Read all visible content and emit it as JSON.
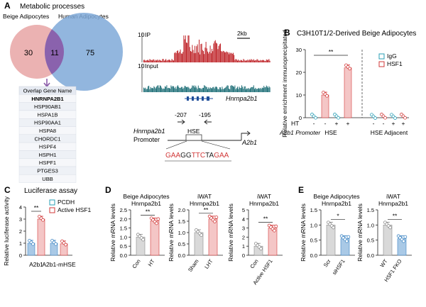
{
  "panel_A": {
    "letter": "A",
    "title": "Metabolic processes",
    "venn": {
      "left_label": "Beige Adipocytes",
      "right_label": "Human Adipocytes",
      "left_only": "30",
      "overlap": "11",
      "right_only": "75",
      "left_color": "#e8a4a4",
      "right_color": "#7fa9d8",
      "overlap_color": "#8a5aa8"
    },
    "gene_table": {
      "header": "Overlap Gene Name",
      "genes": [
        "HNRNPA2B1",
        "HSP90AB1",
        "HSPA1B",
        "HSP90AA1",
        "HSPA8",
        "CHORDC1",
        "HSPF4",
        "HSPH1",
        "HSPF1",
        "PTGES3",
        "UBB"
      ]
    },
    "tracks": {
      "ip_label": "IP",
      "input_label": "Input",
      "ip_scale": "10",
      "input_scale": "10",
      "scalebar": "2kb",
      "gene_label": "Hnrnpa2b1",
      "ip_color": "#c0282d",
      "input_color": "#1f6f78"
    },
    "promoter": {
      "gene": "Hnrnpa2b1",
      "promoter_label": "Promoter",
      "pos1": "-207",
      "pos2": "-195",
      "element": "HSE",
      "gene_box": "A2b1",
      "seq": [
        {
          "t": "GAA",
          "c": "#d23a3a"
        },
        {
          "t": "GG",
          "c": "#222222"
        },
        {
          "t": "TTC",
          "c": "#d23a3a"
        },
        {
          "t": "TA",
          "c": "#222222"
        },
        {
          "t": "GAA",
          "c": "#d23a3a"
        }
      ]
    }
  },
  "panel_B": {
    "letter": "B",
    "title": "C3H10T1/2-Derived Beige Adipocytes",
    "ylabel": "Relative enrichment immunoprecipitated",
    "ht_label": "HT",
    "ht_signs": [
      "-",
      "-",
      "+",
      "+",
      "-",
      "-",
      "+",
      "+"
    ],
    "promoter_label": "A2b1 Promoter",
    "group_labels": [
      "HSE",
      "HSE Adjacent"
    ],
    "legend": [
      "IgG",
      "HSF1"
    ],
    "sig": "**"
  },
  "panel_C": {
    "letter": "C",
    "title": "Luciferase assay",
    "ylabel": "Relative luciferase activity",
    "legend": [
      "PCDH",
      "Active HSF1"
    ],
    "group_labels": [
      "A2b1",
      "A2b1-mHSE"
    ],
    "sig": "**"
  },
  "panel_D": {
    "letter": "D",
    "subplots": [
      {
        "title1": "Beige Adipocytes",
        "title2": "Hnrnpa2b1",
        "cats": [
          "Con",
          "HT"
        ],
        "sig": "**"
      },
      {
        "title1": "iWAT",
        "title2": "Hnrnpa2b1",
        "cats": [
          "Sham",
          "LHT"
        ],
        "sig": "**"
      },
      {
        "title1": "iWAT",
        "title2": "Hnrnpa2b1",
        "cats": [
          "Con",
          "Active HSF1"
        ],
        "sig": "**"
      }
    ],
    "ylabel": "Relative mRNA levels"
  },
  "panel_E": {
    "letter": "E",
    "subplots": [
      {
        "title1": "Beige Adipocytes",
        "title2": "Hnrnpa2b1",
        "cats": [
          "Scr",
          "siHSF1"
        ],
        "sig": "*"
      },
      {
        "title1": "iWAT",
        "title2": "Hnrnpa2b1",
        "cats": [
          "WT",
          "HSF1 FKO"
        ],
        "sig": "**"
      }
    ],
    "ylabel": "Relative mRNA levels"
  },
  "colors": {
    "pink_fill": "#f4c6c6",
    "pink_edge": "#d23a3a",
    "blue_fill": "#a9c9e6",
    "blue_edge": "#3f86c4",
    "grey_fill": "#d9d9d9",
    "grey_edge": "#8c8c8c",
    "teal_edge": "#2a9fb6"
  },
  "chart_data": [
    {
      "type": "bar",
      "panel": "B",
      "categories": [
        "HSE -",
        "HSE -",
        "HSE +",
        "HSE +",
        "HSE Adjacent -",
        "HSE Adjacent -",
        "HSE Adjacent +",
        "HSE Adjacent +"
      ],
      "series": [
        {
          "name": "IgG",
          "values": [
            0.3,
            null,
            0.3,
            null,
            0.2,
            null,
            0.2,
            null
          ]
        },
        {
          "name": "HSF1",
          "values": [
            null,
            10,
            null,
            22,
            null,
            0.3,
            null,
            0.3
          ]
        }
      ],
      "ylim": [
        0,
        30
      ],
      "yticks": [
        0,
        10,
        20,
        30
      ],
      "ylabel": "Relative enrichment immunoprecipitated"
    },
    {
      "type": "bar",
      "panel": "C",
      "categories": [
        "A2b1",
        "A2b1-mHSE"
      ],
      "series": [
        {
          "name": "PCDH",
          "values": [
            1.0,
            1.0
          ]
        },
        {
          "name": "Active HSF1",
          "values": [
            3.0,
            0.95
          ]
        }
      ],
      "ylim": [
        0,
        4
      ],
      "yticks": [
        0,
        1,
        2,
        3,
        4
      ],
      "ylabel": "Relative luciferase activity"
    },
    {
      "type": "bar",
      "panel": "D1",
      "categories": [
        "Con",
        "HT"
      ],
      "values": [
        1.0,
        1.9
      ],
      "ylim": [
        0,
        2.5
      ],
      "yticks": [
        0.0,
        0.5,
        1.0,
        1.5,
        2.0,
        2.5
      ],
      "ylabel": "Relative mRNA levels"
    },
    {
      "type": "bar",
      "panel": "D2",
      "categories": [
        "Sham",
        "LHT"
      ],
      "values": [
        1.0,
        1.6
      ],
      "ylim": [
        0,
        2.0
      ],
      "yticks": [
        0.0,
        0.5,
        1.0,
        1.5,
        2.0
      ],
      "ylabel": "Relative mRNA levels"
    },
    {
      "type": "bar",
      "panel": "D3",
      "categories": [
        "Con",
        "Active HSF1"
      ],
      "values": [
        1.0,
        3.0
      ],
      "ylim": [
        0,
        5
      ],
      "yticks": [
        0,
        1,
        2,
        3,
        4,
        5
      ],
      "ylabel": "Relative mRNA levels"
    },
    {
      "type": "bar",
      "panel": "E1",
      "categories": [
        "Scr",
        "siHSF1"
      ],
      "values": [
        1.0,
        0.55
      ],
      "ylim": [
        0,
        1.5
      ],
      "yticks": [
        0.0,
        0.5,
        1.0,
        1.5
      ],
      "ylabel": "Relative mRNA levels"
    },
    {
      "type": "bar",
      "panel": "E2",
      "categories": [
        "WT",
        "HSF1 FKO"
      ],
      "values": [
        1.0,
        0.55
      ],
      "ylim": [
        0,
        1.5
      ],
      "yticks": [
        0.0,
        0.5,
        1.0,
        1.5
      ],
      "ylabel": "Relative mRNA levels"
    }
  ]
}
